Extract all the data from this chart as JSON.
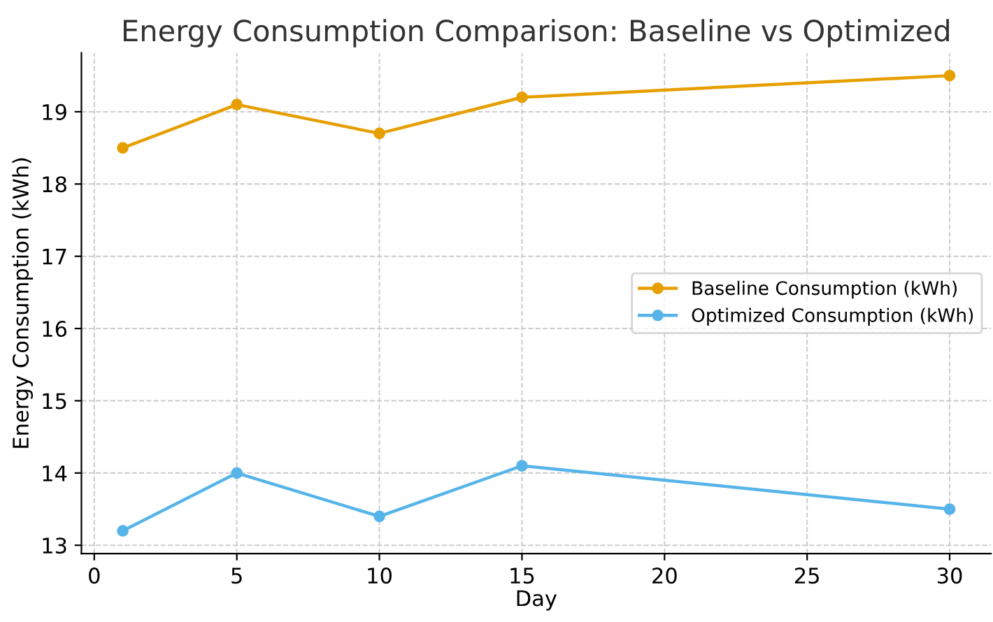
{
  "chart_data": {
    "type": "line",
    "title": "Energy Consumption Comparison: Baseline vs Optimized",
    "xlabel": "Day",
    "ylabel": "Energy Consumption (kWh)",
    "x": [
      1,
      5,
      10,
      15,
      30
    ],
    "series": [
      {
        "name": "Baseline Consumption (kWh)",
        "color": "#e69f00",
        "values": [
          18.5,
          19.1,
          18.7,
          19.2,
          19.5
        ]
      },
      {
        "name": "Optimized Consumption (kWh)",
        "color": "#56b4e9",
        "values": [
          13.2,
          14.0,
          13.4,
          14.1,
          13.5
        ]
      }
    ],
    "xlim": [
      -0.45,
      31.45
    ],
    "ylim": [
      12.885,
      19.815
    ],
    "xticks": [
      0,
      5,
      10,
      15,
      20,
      25,
      30
    ],
    "yticks": [
      13,
      14,
      15,
      16,
      17,
      18,
      19
    ],
    "grid": true,
    "legend": "right",
    "marker": "circle",
    "line_style": "solid"
  }
}
